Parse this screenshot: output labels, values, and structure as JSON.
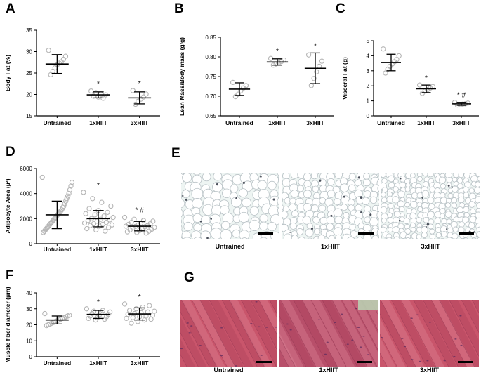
{
  "panels": {
    "A": {
      "letter": "A"
    },
    "B": {
      "letter": "B"
    },
    "C": {
      "letter": "C"
    },
    "D": {
      "letter": "D"
    },
    "E": {
      "letter": "E"
    },
    "F": {
      "letter": "F"
    },
    "G": {
      "letter": "G"
    }
  },
  "colors": {
    "point_stroke": "#b5b5b5",
    "errorbar": "#000000",
    "adipose_bg": "#eef5f3",
    "muscle_base": "#c9556b"
  },
  "micrographs": {
    "E": {
      "captions": [
        "Untrained",
        "1xHIIT",
        "3xHIIT"
      ]
    },
    "G": {
      "captions": [
        "Untrained",
        "1xHIIT",
        "3xHIIT"
      ]
    }
  },
  "chart_data": [
    {
      "id": "A",
      "type": "scatter",
      "ylabel": "Body Fat (%)",
      "ylim": [
        15,
        35
      ],
      "yticks": [
        15,
        20,
        25,
        30,
        35
      ],
      "categories": [
        "Untrained",
        "1xHIIT",
        "3xHIIT"
      ],
      "means": [
        27.1,
        19.9,
        19.2
      ],
      "sd": [
        2.2,
        0.7,
        1.4
      ],
      "marks": [
        "",
        "*",
        "*"
      ],
      "points": [
        [
          30.3,
          28.9,
          28.2,
          27.6,
          27.3,
          26.9,
          26.2,
          25.4,
          24.6
        ],
        [
          20.8,
          20.4,
          20.1,
          19.9,
          19.6,
          19.4,
          19.1
        ],
        [
          20.9,
          20.1,
          19.4,
          18.9,
          18.4,
          17.7
        ]
      ]
    },
    {
      "id": "B",
      "type": "scatter",
      "ylabel": "Lean Mass/Body mass (g/g)",
      "ylim": [
        0.65,
        0.85
      ],
      "yticks": [
        0.65,
        0.7,
        0.75,
        0.8,
        0.85
      ],
      "categories": [
        "Untrained",
        "1xHIIT",
        "3xHIIT"
      ],
      "means": [
        0.718,
        0.787,
        0.771
      ],
      "sd": [
        0.016,
        0.008,
        0.039
      ],
      "marks": [
        "",
        "*",
        "*"
      ],
      "points": [
        [
          0.735,
          0.727,
          0.721,
          0.714,
          0.705,
          0.699
        ],
        [
          0.796,
          0.792,
          0.788,
          0.785,
          0.782,
          0.779
        ],
        [
          0.805,
          0.789,
          0.776,
          0.762,
          0.745,
          0.727
        ]
      ]
    },
    {
      "id": "C",
      "type": "scatter",
      "ylabel": "Visceral Fat (g)",
      "ylim": [
        0,
        5
      ],
      "yticks": [
        0,
        1,
        2,
        3,
        4,
        5
      ],
      "categories": [
        "Untrained",
        "1xHIIT",
        "3xHIIT"
      ],
      "means": [
        3.55,
        1.8,
        0.8
      ],
      "sd": [
        0.55,
        0.25,
        0.1
      ],
      "marks": [
        "",
        "*",
        "* #"
      ],
      "points": [
        [
          4.45,
          4.0,
          3.75,
          3.6,
          3.45,
          3.3,
          3.1,
          2.85
        ],
        [
          2.05,
          1.95,
          1.85,
          1.75,
          1.65,
          1.5
        ],
        [
          0.9,
          0.85,
          0.8,
          0.78,
          0.75,
          0.72
        ]
      ]
    },
    {
      "id": "D",
      "type": "scatter",
      "ylabel": "Adipocyte Area (μ²)",
      "ylim": [
        0,
        6000
      ],
      "yticks": [
        0,
        2000,
        4000,
        6000
      ],
      "categories": [
        "Untrained",
        "1xHIIT",
        "3xHIIT"
      ],
      "means": [
        2300,
        2000,
        1400
      ],
      "sd": [
        1100,
        650,
        380
      ],
      "marks": [
        "",
        "*",
        "* #"
      ],
      "points": [
        [
          5300,
          4900,
          4600,
          4300,
          4000,
          3800,
          3600,
          3400,
          3200,
          3000,
          2850,
          2700,
          2600,
          2500,
          2400,
          2300,
          2200,
          2100,
          2000,
          1900,
          1800,
          1700,
          1600,
          1500,
          1400,
          1300,
          1200,
          1100,
          1000,
          900
        ],
        [
          4100,
          3600,
          3300,
          3000,
          2800,
          2650,
          2500,
          2400,
          2300,
          2200,
          2100,
          2000,
          1950,
          1900,
          1850,
          1800,
          1700,
          1650,
          1600,
          1550,
          1500,
          1450,
          1400,
          1300,
          1200,
          1100,
          1000
        ],
        [
          2100,
          1950,
          1850,
          1800,
          1700,
          1650,
          1600,
          1550,
          1500,
          1450,
          1400,
          1380,
          1350,
          1300,
          1250,
          1200,
          1150,
          1100,
          1050,
          1000,
          950,
          900,
          850
        ]
      ]
    },
    {
      "id": "F",
      "type": "scatter",
      "ylabel": "Muscle fiber diameter (μm)",
      "ylim": [
        0,
        40
      ],
      "yticks": [
        0,
        10,
        20,
        30,
        40
      ],
      "categories": [
        "Untrained",
        "1xHIIT",
        "3xHIIT"
      ],
      "means": [
        23,
        26.5,
        26.8
      ],
      "sd": [
        2.5,
        2.5,
        3.8
      ],
      "marks": [
        "",
        "*",
        "*"
      ],
      "points": [
        [
          27,
          26,
          25.5,
          25,
          24.5,
          24,
          23.5,
          23,
          22.5,
          22,
          21.5,
          21,
          20.5,
          20,
          19.5
        ],
        [
          30,
          29,
          28.5,
          28,
          27.5,
          27,
          26.5,
          26,
          25.5,
          25,
          24.5,
          24,
          23.5,
          23
        ],
        [
          33,
          32,
          31,
          30,
          29,
          28.5,
          28,
          27.5,
          27,
          26.5,
          26,
          25.5,
          25,
          24.5,
          24,
          23.5,
          23,
          22,
          21
        ]
      ]
    }
  ]
}
